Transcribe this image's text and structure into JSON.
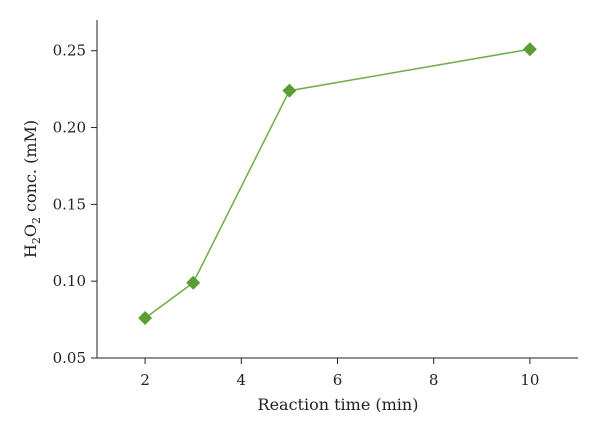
{
  "chart_data": {
    "type": "line",
    "title": "",
    "xlabel": "Reaction time (min)",
    "ylabel": {
      "parts": [
        {
          "text": "H",
          "sub": false
        },
        {
          "text": "2",
          "sub": true
        },
        {
          "text": "O",
          "sub": false
        },
        {
          "text": "2",
          "sub": true
        },
        {
          "text": " conc. (mM)",
          "sub": false
        }
      ]
    },
    "xlim": [
      1,
      11
    ],
    "ylim": [
      0.05,
      0.27
    ],
    "xticks": [
      2,
      4,
      6,
      8,
      10
    ],
    "yticks": [
      0.05,
      0.1,
      0.15,
      0.2,
      0.25
    ],
    "ytick_labels": [
      "0.05",
      "0.10",
      "0.15",
      "0.20",
      "0.25"
    ],
    "grid": false,
    "series": [
      {
        "x": [
          2,
          3,
          5,
          10
        ],
        "y": [
          0.076,
          0.099,
          0.224,
          0.251
        ],
        "color": "#6fad46",
        "marker": "diamond",
        "marker_color": "#5a9e33"
      }
    ]
  }
}
